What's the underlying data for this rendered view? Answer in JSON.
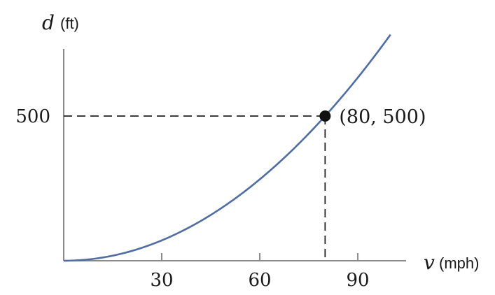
{
  "chart_data": {
    "type": "line",
    "xlabel_var": "v",
    "xlabel_unit": "(mph)",
    "ylabel_var": "d",
    "ylabel_unit": "(ft)",
    "x_ticks": [
      30,
      60,
      90
    ],
    "x_tick_labels": [
      "30",
      "60",
      "90"
    ],
    "y_ticks": [
      500
    ],
    "y_tick_labels": [
      "500"
    ],
    "xlim": [
      0,
      104
    ],
    "ylim": [
      0,
      740
    ],
    "curve": {
      "function": "d = 500 * (v/80)^2",
      "x_start": 0,
      "x_end": 100
    },
    "highlight_point": {
      "x": 80,
      "y": 500,
      "label": "(80, 500)"
    },
    "grid": false,
    "legend": "none"
  }
}
